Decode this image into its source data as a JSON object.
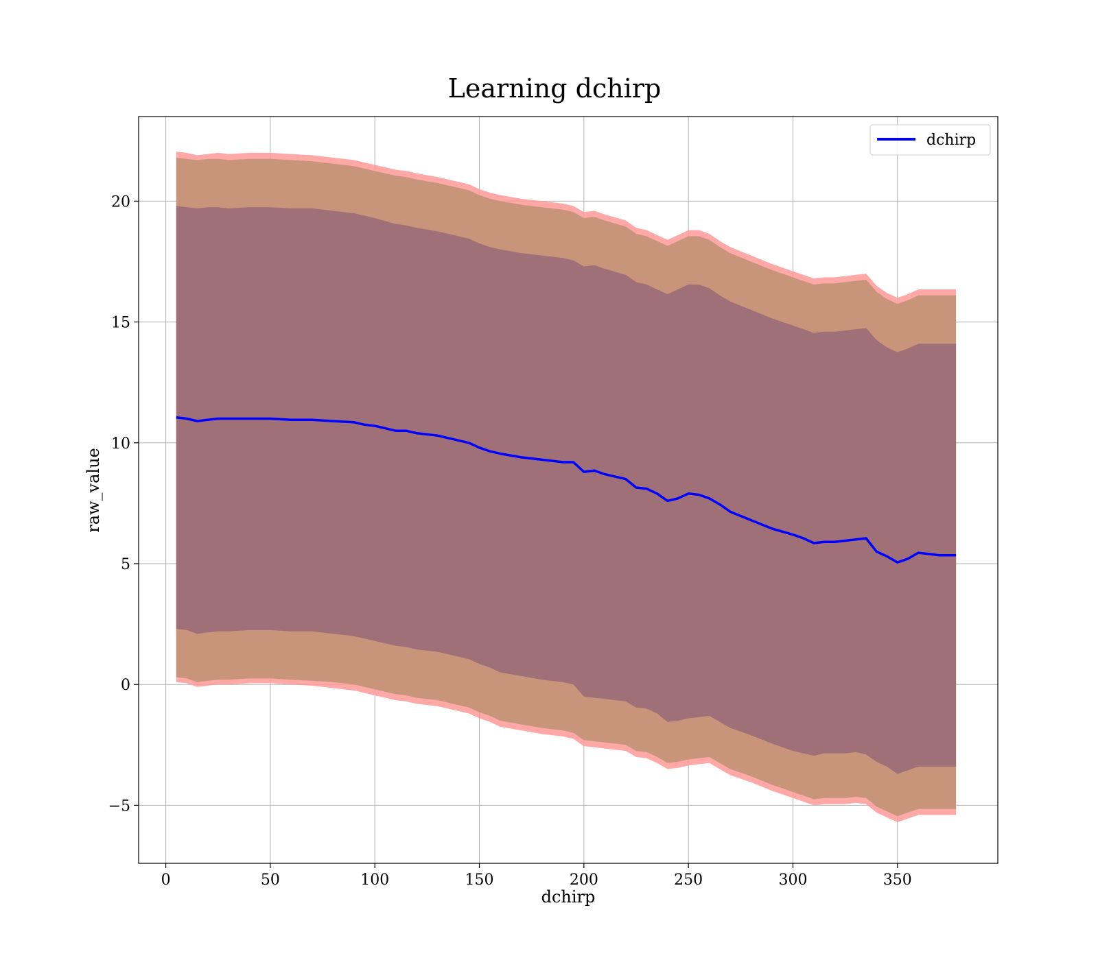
{
  "chart_data": {
    "type": "line",
    "title": "Learning dchirp",
    "xlabel": "dchirp",
    "ylabel": "raw_value",
    "xlim": [
      -13,
      398
    ],
    "ylim": [
      -7.4,
      23.5
    ],
    "xticks": [
      0,
      50,
      100,
      150,
      200,
      250,
      300,
      350
    ],
    "yticks": [
      -5,
      0,
      5,
      10,
      15,
      20
    ],
    "grid": true,
    "legend": {
      "position": "top-right",
      "entries": [
        "dchirp"
      ]
    },
    "colors": {
      "line": "#0000ff",
      "band_outer": "#ff9999",
      "band_middle": "#c8957a",
      "band_inner": "#a07078",
      "grid": "#b0b0b0"
    },
    "series": [
      {
        "name": "dchirp",
        "x": [
          5,
          10,
          15,
          20,
          25,
          30,
          40,
          50,
          60,
          70,
          80,
          90,
          95,
          100,
          110,
          115,
          120,
          130,
          140,
          145,
          150,
          155,
          160,
          170,
          180,
          190,
          195,
          200,
          205,
          210,
          220,
          225,
          230,
          235,
          240,
          245,
          250,
          255,
          260,
          265,
          270,
          280,
          290,
          300,
          305,
          310,
          315,
          320,
          325,
          330,
          335,
          340,
          345,
          350,
          355,
          360,
          365,
          370,
          378
        ],
        "y": [
          11.05,
          11.0,
          10.9,
          10.95,
          11.0,
          11.0,
          11.0,
          11.0,
          10.95,
          10.95,
          10.9,
          10.85,
          10.75,
          10.7,
          10.5,
          10.5,
          10.4,
          10.3,
          10.1,
          10.0,
          9.8,
          9.65,
          9.55,
          9.4,
          9.3,
          9.2,
          9.2,
          8.8,
          8.85,
          8.7,
          8.5,
          8.15,
          8.1,
          7.9,
          7.6,
          7.7,
          7.9,
          7.85,
          7.7,
          7.45,
          7.15,
          6.8,
          6.45,
          6.2,
          6.05,
          5.85,
          5.9,
          5.9,
          5.95,
          6.0,
          6.05,
          5.5,
          5.3,
          5.05,
          5.2,
          5.45,
          5.4,
          5.35,
          5.35
        ],
        "band_inner": {
          "upper": [
            19.8,
            19.75,
            19.7,
            19.75,
            19.75,
            19.7,
            19.75,
            19.75,
            19.7,
            19.7,
            19.6,
            19.5,
            19.4,
            19.3,
            19.05,
            19.0,
            18.9,
            18.75,
            18.55,
            18.45,
            18.25,
            18.1,
            18.0,
            17.85,
            17.75,
            17.65,
            17.55,
            17.3,
            17.35,
            17.2,
            16.95,
            16.65,
            16.55,
            16.35,
            16.15,
            16.35,
            16.55,
            16.55,
            16.4,
            16.1,
            15.85,
            15.5,
            15.15,
            14.85,
            14.7,
            14.55,
            14.6,
            14.6,
            14.65,
            14.7,
            14.75,
            14.25,
            13.95,
            13.75,
            13.9,
            14.1,
            14.1,
            14.1,
            14.1
          ],
          "lower": [
            2.3,
            2.25,
            2.1,
            2.15,
            2.2,
            2.2,
            2.25,
            2.25,
            2.2,
            2.2,
            2.1,
            2.0,
            1.9,
            1.8,
            1.6,
            1.55,
            1.45,
            1.35,
            1.15,
            1.05,
            0.85,
            0.7,
            0.5,
            0.35,
            0.2,
            0.1,
            0.0,
            -0.5,
            -0.55,
            -0.6,
            -0.7,
            -0.95,
            -1.0,
            -1.2,
            -1.55,
            -1.5,
            -1.4,
            -1.35,
            -1.3,
            -1.55,
            -1.8,
            -2.1,
            -2.45,
            -2.75,
            -2.85,
            -2.95,
            -2.85,
            -2.85,
            -2.85,
            -2.8,
            -2.9,
            -3.2,
            -3.4,
            -3.7,
            -3.55,
            -3.4,
            -3.4,
            -3.4,
            -3.4
          ]
        },
        "band_middle": {
          "upper": [
            21.8,
            21.75,
            21.7,
            21.75,
            21.75,
            21.7,
            21.75,
            21.75,
            21.7,
            21.65,
            21.55,
            21.45,
            21.35,
            21.25,
            21.05,
            21.0,
            20.9,
            20.75,
            20.55,
            20.45,
            20.25,
            20.1,
            20.0,
            19.85,
            19.75,
            19.65,
            19.55,
            19.3,
            19.35,
            19.2,
            18.95,
            18.65,
            18.55,
            18.35,
            18.15,
            18.35,
            18.55,
            18.55,
            18.4,
            18.1,
            17.85,
            17.5,
            17.15,
            16.85,
            16.7,
            16.55,
            16.6,
            16.6,
            16.65,
            16.7,
            16.75,
            16.25,
            15.95,
            15.75,
            15.9,
            16.1,
            16.1,
            16.1,
            16.1
          ],
          "lower": [
            0.3,
            0.25,
            0.1,
            0.15,
            0.2,
            0.2,
            0.25,
            0.25,
            0.2,
            0.15,
            0.1,
            0.0,
            -0.1,
            -0.2,
            -0.4,
            -0.45,
            -0.55,
            -0.65,
            -0.85,
            -0.95,
            -1.15,
            -1.3,
            -1.5,
            -1.65,
            -1.8,
            -1.9,
            -2.0,
            -2.3,
            -2.35,
            -2.4,
            -2.5,
            -2.75,
            -2.8,
            -3.0,
            -3.25,
            -3.2,
            -3.1,
            -3.05,
            -3.0,
            -3.25,
            -3.5,
            -3.8,
            -4.15,
            -4.45,
            -4.6,
            -4.75,
            -4.7,
            -4.7,
            -4.7,
            -4.65,
            -4.7,
            -5.05,
            -5.25,
            -5.45,
            -5.3,
            -5.15,
            -5.15,
            -5.15,
            -5.15
          ]
        },
        "band_outer": {
          "upper": [
            22.05,
            22.0,
            21.9,
            21.95,
            22.0,
            21.95,
            22.0,
            22.0,
            21.95,
            21.9,
            21.8,
            21.7,
            21.6,
            21.5,
            21.3,
            21.25,
            21.15,
            21.0,
            20.8,
            20.7,
            20.5,
            20.35,
            20.25,
            20.1,
            20.0,
            19.9,
            19.8,
            19.55,
            19.6,
            19.45,
            19.2,
            18.9,
            18.8,
            18.6,
            18.4,
            18.6,
            18.8,
            18.8,
            18.65,
            18.35,
            18.1,
            17.75,
            17.4,
            17.1,
            16.95,
            16.8,
            16.85,
            16.85,
            16.9,
            16.95,
            17.0,
            16.5,
            16.2,
            16.0,
            16.15,
            16.35,
            16.35,
            16.35,
            16.35
          ],
          "lower": [
            0.1,
            0.05,
            -0.1,
            -0.05,
            0.0,
            0.0,
            0.05,
            0.05,
            0.0,
            -0.05,
            -0.15,
            -0.25,
            -0.35,
            -0.45,
            -0.65,
            -0.7,
            -0.8,
            -0.9,
            -1.1,
            -1.2,
            -1.4,
            -1.55,
            -1.75,
            -1.9,
            -2.05,
            -2.15,
            -2.25,
            -2.55,
            -2.6,
            -2.65,
            -2.75,
            -3.0,
            -3.05,
            -3.25,
            -3.5,
            -3.45,
            -3.35,
            -3.3,
            -3.25,
            -3.5,
            -3.75,
            -4.05,
            -4.4,
            -4.7,
            -4.85,
            -5.0,
            -4.95,
            -4.95,
            -4.95,
            -4.9,
            -4.95,
            -5.3,
            -5.5,
            -5.7,
            -5.55,
            -5.4,
            -5.4,
            -5.4,
            -5.4
          ]
        }
      }
    ]
  }
}
